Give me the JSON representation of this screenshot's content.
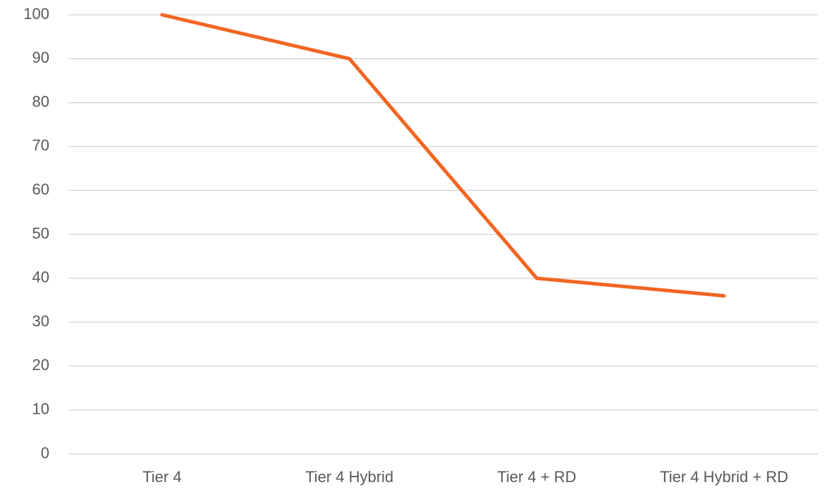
{
  "chart_data": {
    "type": "line",
    "categories": [
      "Tier 4",
      "Tier 4 Hybrid",
      "Tier 4 + RD",
      "Tier 4 Hybrid + RD"
    ],
    "values": [
      100,
      90,
      40,
      36
    ],
    "color": "#f26522",
    "ylim": [
      0,
      100
    ],
    "yticks": [
      0,
      10,
      20,
      30,
      40,
      50,
      60,
      70,
      80,
      90,
      100
    ],
    "grid": true
  }
}
